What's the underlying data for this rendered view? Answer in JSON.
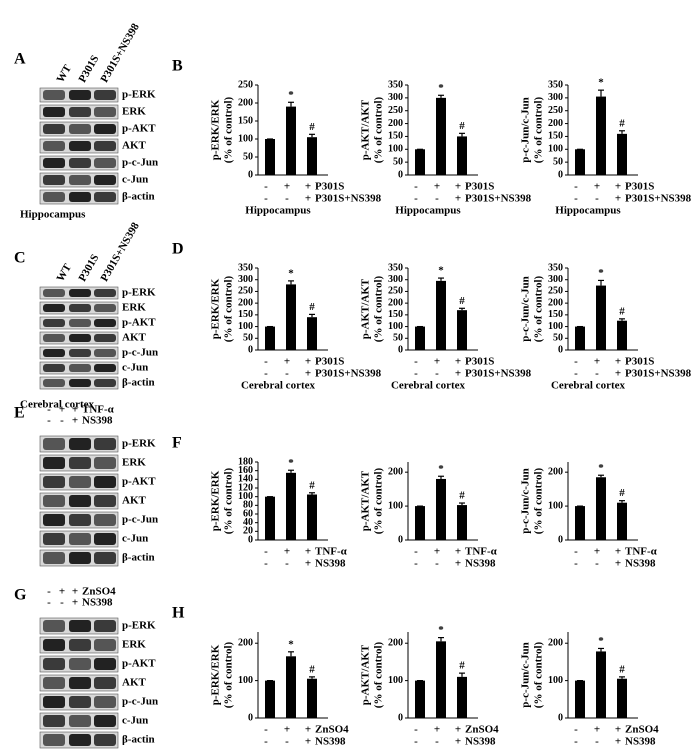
{
  "blots": [
    {
      "letter": "A",
      "columns": [
        "WT",
        "P301S",
        "P301S+NS398"
      ],
      "bands": [
        "p-ERK",
        "ERK",
        "p-AKT",
        "AKT",
        "p-c-Jun",
        "c-Jun",
        "β-actin"
      ],
      "caption": "Hippocampus"
    },
    {
      "letter": "C",
      "columns": [
        "WT",
        "P301S",
        "P301S+NS398"
      ],
      "bands": [
        "p-ERK",
        "ERK",
        "p-AKT",
        "AKT",
        "p-c-Jun",
        "c-Jun",
        "β-actin"
      ],
      "caption": "Cerebral cortex"
    },
    {
      "letter": "E",
      "treatment_rows": [
        {
          "label": "TNF-α",
          "signs": [
            "-",
            "+",
            "+"
          ]
        },
        {
          "label": "NS398",
          "signs": [
            "-",
            "-",
            "+"
          ]
        }
      ],
      "bands": [
        "p-ERK",
        "ERK",
        "p-AKT",
        "AKT",
        "p-c-Jun",
        "c-Jun",
        "β-actin"
      ]
    },
    {
      "letter": "G",
      "treatment_rows": [
        {
          "label": "ZnSO4",
          "signs": [
            "-",
            "+",
            "+"
          ]
        },
        {
          "label": "NS398",
          "signs": [
            "-",
            "-",
            "+"
          ]
        }
      ],
      "bands": [
        "p-ERK",
        "ERK",
        "p-AKT",
        "AKT",
        "p-c-Jun",
        "c-Jun",
        "β-actin"
      ]
    }
  ],
  "chart_data": [
    {
      "type": "bar",
      "panel": "B",
      "ylabel": [
        "p-ERK/ERK",
        "(% of control)"
      ],
      "values": [
        100,
        190,
        105
      ],
      "errors": [
        0,
        12,
        8
      ],
      "markers": [
        null,
        "*",
        "#"
      ],
      "ylim": [
        0,
        250
      ],
      "yticks": [
        0,
        50,
        100,
        150,
        200,
        250
      ],
      "color": "#000000",
      "rows": [
        {
          "label": "P301S",
          "signs": [
            "-",
            "+",
            "+"
          ]
        },
        {
          "label": "P301S+NS398",
          "signs": [
            "-",
            "-",
            "+"
          ]
        }
      ],
      "xlabel": "Hippocampus"
    },
    {
      "type": "bar",
      "ylabel": [
        "p-AKT/AKT",
        "(% of control)"
      ],
      "values": [
        100,
        300,
        150
      ],
      "errors": [
        0,
        10,
        12
      ],
      "markers": [
        null,
        "*",
        "#"
      ],
      "ylim": [
        0,
        350
      ],
      "yticks": [
        0,
        50,
        100,
        150,
        200,
        250,
        300,
        350
      ],
      "color": "#000000",
      "rows": [
        {
          "label": "P301S",
          "signs": [
            "-",
            "+",
            "+"
          ]
        },
        {
          "label": "P301S+NS398",
          "signs": [
            "-",
            "-",
            "+"
          ]
        }
      ],
      "xlabel": "Hippocampus"
    },
    {
      "type": "bar",
      "ylabel": [
        "p-c-Jun/c-Jun",
        "(% of control)"
      ],
      "values": [
        100,
        305,
        160
      ],
      "errors": [
        0,
        25,
        12
      ],
      "markers": [
        null,
        "*",
        "#"
      ],
      "ylim": [
        0,
        350
      ],
      "yticks": [
        0,
        50,
        100,
        150,
        200,
        250,
        300,
        350
      ],
      "color": "#000000",
      "rows": [
        {
          "label": "P301S",
          "signs": [
            "-",
            "+",
            "+"
          ]
        },
        {
          "label": "P301S+NS398",
          "signs": [
            "-",
            "-",
            "+"
          ]
        }
      ],
      "xlabel": "Hippocampus"
    },
    {
      "type": "bar",
      "panel": "D",
      "ylabel": [
        "p-ERK/ERK",
        "(% of control)"
      ],
      "values": [
        100,
        280,
        140
      ],
      "errors": [
        0,
        15,
        12
      ],
      "markers": [
        null,
        "*",
        "#"
      ],
      "ylim": [
        0,
        350
      ],
      "yticks": [
        0,
        50,
        100,
        150,
        200,
        250,
        300,
        350
      ],
      "color": "#000000",
      "rows": [
        {
          "label": "P301S",
          "signs": [
            "-",
            "+",
            "+"
          ]
        },
        {
          "label": "P301S+NS398",
          "signs": [
            "-",
            "-",
            "+"
          ]
        }
      ],
      "xlabel": "Cerebral cortex"
    },
    {
      "type": "bar",
      "ylabel": [
        "p-AKT/AKT",
        "(% of control)"
      ],
      "values": [
        100,
        295,
        170
      ],
      "errors": [
        0,
        12,
        8
      ],
      "markers": [
        null,
        "*",
        "#"
      ],
      "ylim": [
        0,
        350
      ],
      "yticks": [
        0,
        50,
        100,
        150,
        200,
        250,
        300,
        350
      ],
      "color": "#000000",
      "rows": [
        {
          "label": "P301S",
          "signs": [
            "-",
            "+",
            "+"
          ]
        },
        {
          "label": "P301S+NS398",
          "signs": [
            "-",
            "-",
            "+"
          ]
        }
      ],
      "xlabel": "Cerebral cortex"
    },
    {
      "type": "bar",
      "ylabel": [
        "p-c-Jun/c-Jun",
        "(% of control)"
      ],
      "values": [
        100,
        275,
        125
      ],
      "errors": [
        0,
        22,
        8
      ],
      "markers": [
        null,
        "*",
        "#"
      ],
      "ylim": [
        0,
        350
      ],
      "yticks": [
        0,
        50,
        100,
        150,
        200,
        250,
        300,
        350
      ],
      "color": "#000000",
      "rows": [
        {
          "label": "P301S",
          "signs": [
            "-",
            "+",
            "+"
          ]
        },
        {
          "label": "P301S+NS398",
          "signs": [
            "-",
            "-",
            "+"
          ]
        }
      ],
      "xlabel": "Cerebral cortex"
    },
    {
      "type": "bar",
      "panel": "F",
      "ylabel": [
        "p-ERK/ERK",
        "(% of control)"
      ],
      "values": [
        100,
        155,
        105
      ],
      "errors": [
        0,
        6,
        4
      ],
      "markers": [
        null,
        "*",
        "#"
      ],
      "ylim": [
        0,
        180
      ],
      "yticks": [
        0,
        20,
        40,
        60,
        80,
        100,
        120,
        140,
        160,
        180
      ],
      "color": "#000000",
      "rows": [
        {
          "label": "TNF-α",
          "signs": [
            "-",
            "+",
            "+"
          ]
        },
        {
          "label": "NS398",
          "signs": [
            "-",
            "-",
            "+"
          ]
        }
      ]
    },
    {
      "type": "bar",
      "ylabel": [
        "p-AKT/AKT",
        "(% of control)"
      ],
      "values": [
        100,
        180,
        103
      ],
      "errors": [
        0,
        8,
        6
      ],
      "markers": [
        null,
        "*",
        "#"
      ],
      "ylim": [
        0,
        230
      ],
      "yticks": [
        0,
        100,
        200
      ],
      "color": "#000000",
      "rows": [
        {
          "label": "TNF-α",
          "signs": [
            "-",
            "+",
            "+"
          ]
        },
        {
          "label": "NS398",
          "signs": [
            "-",
            "-",
            "+"
          ]
        }
      ]
    },
    {
      "type": "bar",
      "ylabel": [
        "p-c-Jun/c-Jun",
        "(% of control)"
      ],
      "values": [
        100,
        185,
        110
      ],
      "errors": [
        0,
        6,
        6
      ],
      "markers": [
        null,
        "*",
        "#"
      ],
      "ylim": [
        0,
        230
      ],
      "yticks": [
        0,
        100,
        200
      ],
      "color": "#000000",
      "rows": [
        {
          "label": "TNF-α",
          "signs": [
            "-",
            "+",
            "+"
          ]
        },
        {
          "label": "NS398",
          "signs": [
            "-",
            "-",
            "+"
          ]
        }
      ]
    },
    {
      "type": "bar",
      "panel": "H",
      "ylabel": [
        "p-ERK/ERK",
        "(% of control)"
      ],
      "values": [
        100,
        165,
        105
      ],
      "errors": [
        0,
        12,
        5
      ],
      "markers": [
        null,
        "*",
        "#"
      ],
      "ylim": [
        0,
        230
      ],
      "yticks": [
        0,
        100,
        200
      ],
      "color": "#000000",
      "rows": [
        {
          "label": "ZnSO4",
          "signs": [
            "-",
            "+",
            "+"
          ]
        },
        {
          "label": "NS398",
          "signs": [
            "-",
            "-",
            "+"
          ]
        }
      ]
    },
    {
      "type": "bar",
      "ylabel": [
        "p-AKT/AKT",
        "(% of control)"
      ],
      "values": [
        100,
        205,
        110
      ],
      "errors": [
        0,
        10,
        10
      ],
      "markers": [
        null,
        "*",
        "#"
      ],
      "ylim": [
        0,
        230
      ],
      "yticks": [
        0,
        100,
        200
      ],
      "color": "#000000",
      "rows": [
        {
          "label": "ZnSO4",
          "signs": [
            "-",
            "+",
            "+"
          ]
        },
        {
          "label": "NS398",
          "signs": [
            "-",
            "-",
            "+"
          ]
        }
      ]
    },
    {
      "type": "bar",
      "ylabel": [
        "p-c-Jun/c-Jun",
        "(% of control)"
      ],
      "values": [
        100,
        178,
        105
      ],
      "errors": [
        0,
        8,
        5
      ],
      "markers": [
        null,
        "*",
        "#"
      ],
      "ylim": [
        0,
        230
      ],
      "yticks": [
        0,
        100,
        200
      ],
      "color": "#000000",
      "rows": [
        {
          "label": "ZnSO4",
          "signs": [
            "-",
            "+",
            "+"
          ]
        },
        {
          "label": "NS398",
          "signs": [
            "-",
            "-",
            "+"
          ]
        }
      ]
    }
  ]
}
